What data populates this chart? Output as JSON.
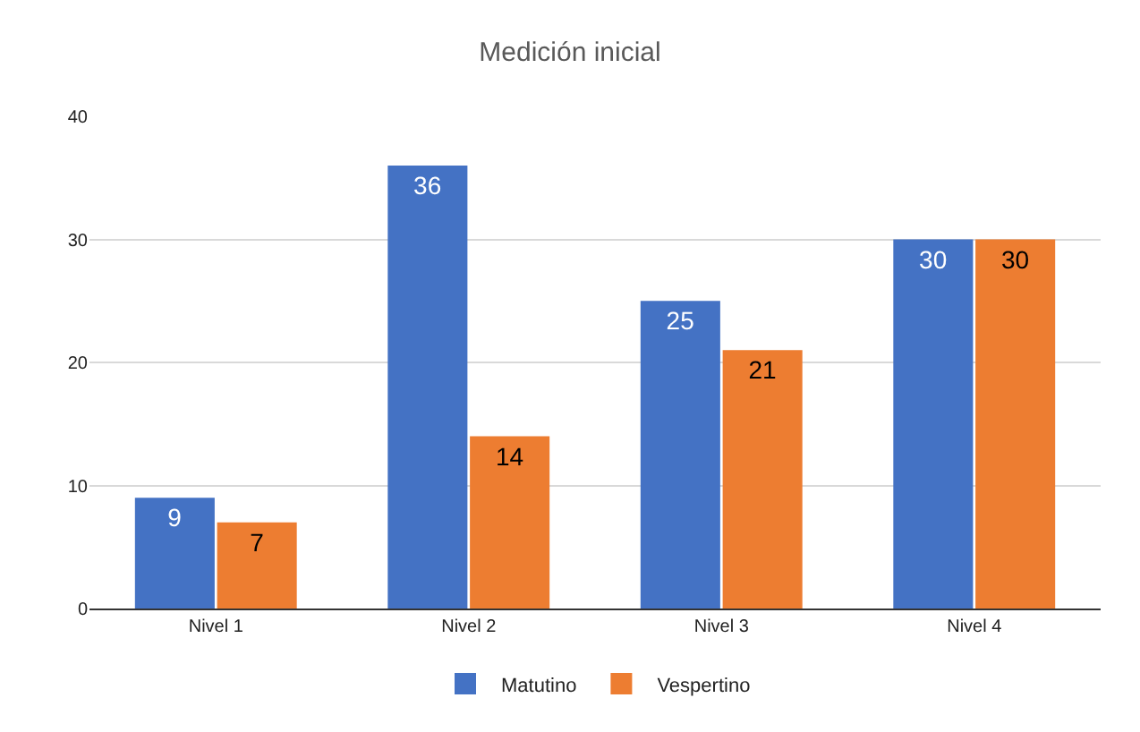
{
  "chart_data": {
    "type": "bar",
    "title": "Medición inicial",
    "categories": [
      "Nivel 1",
      "Nivel 2",
      "Nivel 3",
      "Nivel 4"
    ],
    "series": [
      {
        "name": "Matutino",
        "color": "#4472c4",
        "values": [
          9,
          36,
          25,
          30
        ]
      },
      {
        "name": "Vespertino",
        "color": "#ed7d31",
        "values": [
          7,
          14,
          21,
          30
        ]
      }
    ],
    "ylim": [
      0,
      40
    ],
    "yticks": [
      0,
      10,
      20,
      30,
      40
    ],
    "grid": "y",
    "legend": "bottom",
    "data_labels": true
  }
}
